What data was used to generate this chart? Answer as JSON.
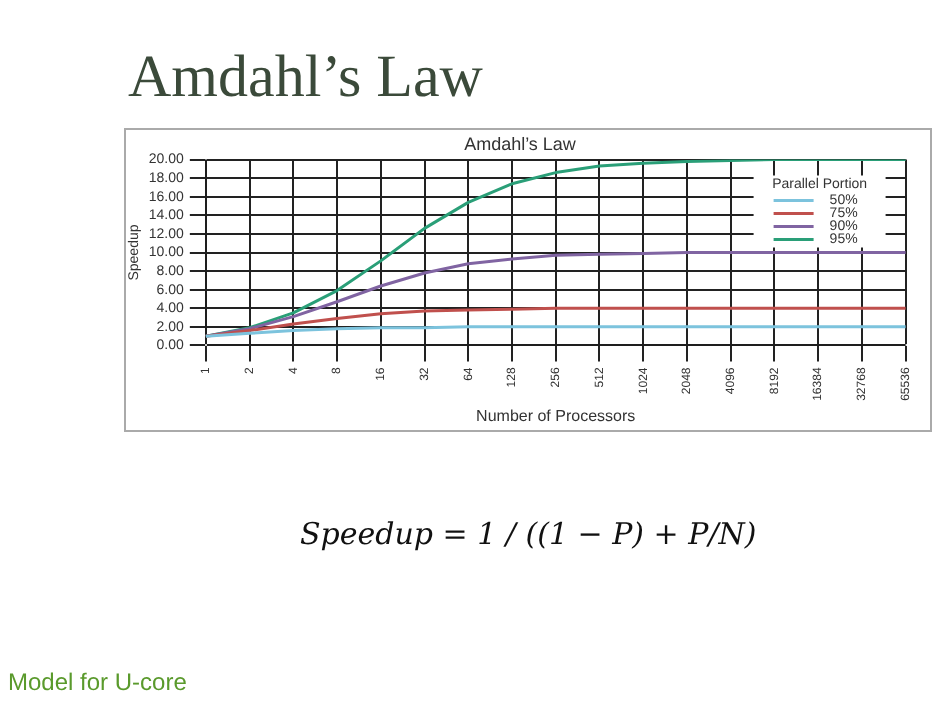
{
  "chart_data": {
    "type": "line",
    "title": "Amdahl’s Law",
    "xlabel": "Number of Processors",
    "ylabel": "Speedup",
    "legend_title": "Parallel Portion",
    "categories": [
      "1",
      "2",
      "4",
      "8",
      "16",
      "32",
      "64",
      "128",
      "256",
      "512",
      "1024",
      "2048",
      "4096",
      "8192",
      "16384",
      "32768",
      "65536"
    ],
    "series": [
      {
        "name": "50%",
        "color": "#7cc3dd",
        "values": [
          1,
          1.3,
          1.6,
          1.8,
          1.9,
          1.9,
          2,
          2,
          2,
          2,
          2,
          2,
          2,
          2,
          2,
          2,
          2
        ]
      },
      {
        "name": "75%",
        "color": "#c0504d",
        "values": [
          1,
          1.6,
          2.3,
          2.9,
          3.4,
          3.7,
          3.8,
          3.9,
          4,
          4,
          4,
          4,
          4,
          4,
          4,
          4,
          4
        ]
      },
      {
        "name": "90%",
        "color": "#8064a2",
        "values": [
          1,
          1.8,
          3.1,
          4.7,
          6.4,
          7.8,
          8.8,
          9.3,
          9.7,
          9.8,
          9.9,
          10,
          10,
          10,
          10,
          10,
          10
        ]
      },
      {
        "name": "95%",
        "color": "#2a9f78",
        "values": [
          1,
          1.9,
          3.5,
          5.9,
          9.1,
          12.6,
          15.4,
          17.4,
          18.6,
          19.3,
          19.6,
          19.8,
          19.9,
          20,
          20,
          20,
          20
        ]
      }
    ],
    "ylim": [
      0,
      20
    ],
    "yticks": [
      {
        "value": 0,
        "label": "0.00"
      },
      {
        "value": 2,
        "label": "2.00"
      },
      {
        "value": 4,
        "label": "4.00"
      },
      {
        "value": 6,
        "label": "6.00"
      },
      {
        "value": 8,
        "label": "8.00"
      },
      {
        "value": 10,
        "label": "10.00"
      },
      {
        "value": 12,
        "label": "12.00"
      },
      {
        "value": 14,
        "label": "14.00"
      },
      {
        "value": 16,
        "label": "16.00"
      },
      {
        "value": 18,
        "label": "18.00"
      },
      {
        "value": 20,
        "label": "20.00"
      }
    ],
    "grid": true,
    "legend": "top right",
    "marker": "none",
    "line_style": "solid",
    "annotations": [
      "Amdahl’s Law",
      "Speedup = 1 / ((1 − P) + P/N)",
      "Model for U-core"
    ]
  }
}
